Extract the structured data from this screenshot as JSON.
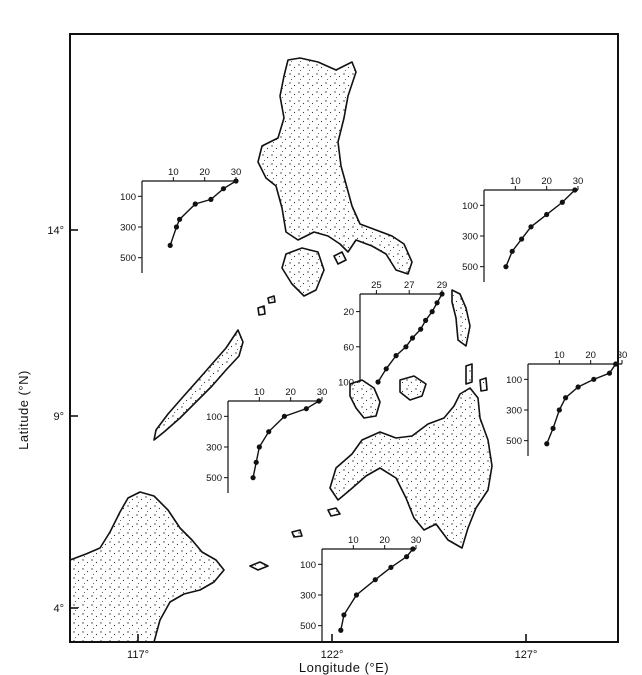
{
  "map": {
    "x_axis": {
      "title": "Longitude (°E)",
      "ticks": [
        "117°",
        "122°",
        "127°"
      ]
    },
    "y_axis": {
      "title": "Latitude (°N)",
      "ticks": [
        "14°",
        "9°",
        "4°"
      ]
    }
  },
  "profiles": [
    {
      "id": "nw",
      "temp_ticks": [
        "10",
        "20",
        "30"
      ],
      "depth_ticks": [
        "100",
        "300",
        "500"
      ],
      "temp_range": [
        0,
        30
      ],
      "depth_range": [
        0,
        600
      ],
      "points": [
        [
          30,
          0
        ],
        [
          26,
          50
        ],
        [
          22,
          120
        ],
        [
          17,
          150
        ],
        [
          12,
          250
        ],
        [
          11,
          300
        ],
        [
          9,
          420
        ]
      ]
    },
    {
      "id": "ne",
      "temp_ticks": [
        "10",
        "20",
        "30"
      ],
      "depth_ticks": [
        "100",
        "300",
        "500"
      ],
      "temp_range": [
        0,
        30
      ],
      "depth_range": [
        0,
        600
      ],
      "points": [
        [
          29,
          0
        ],
        [
          25,
          80
        ],
        [
          20,
          160
        ],
        [
          15,
          240
        ],
        [
          12,
          320
        ],
        [
          9,
          400
        ],
        [
          7,
          500
        ]
      ]
    },
    {
      "id": "central",
      "temp_ticks": [
        "25",
        "27",
        "29"
      ],
      "depth_ticks": [
        "20",
        "60",
        "100"
      ],
      "temp_range": [
        24,
        29
      ],
      "depth_range": [
        0,
        100
      ],
      "points": [
        [
          29,
          0
        ],
        [
          28.7,
          10
        ],
        [
          28.4,
          20
        ],
        [
          28,
          30
        ],
        [
          27.7,
          40
        ],
        [
          27.2,
          50
        ],
        [
          26.8,
          60
        ],
        [
          26.2,
          70
        ],
        [
          25.6,
          85
        ],
        [
          25.1,
          100
        ]
      ]
    },
    {
      "id": "west",
      "temp_ticks": [
        "10",
        "20",
        "30"
      ],
      "depth_ticks": [
        "100",
        "300",
        "500"
      ],
      "temp_range": [
        0,
        30
      ],
      "depth_range": [
        0,
        600
      ],
      "points": [
        [
          29,
          0
        ],
        [
          25,
          50
        ],
        [
          18,
          100
        ],
        [
          13,
          200
        ],
        [
          10,
          300
        ],
        [
          9,
          400
        ],
        [
          8,
          500
        ]
      ]
    },
    {
      "id": "east",
      "temp_ticks": [
        "10",
        "20",
        "30"
      ],
      "depth_ticks": [
        "100",
        "300",
        "500"
      ],
      "temp_range": [
        0,
        30
      ],
      "depth_range": [
        0,
        600
      ],
      "points": [
        [
          28,
          0
        ],
        [
          26,
          60
        ],
        [
          21,
          100
        ],
        [
          16,
          150
        ],
        [
          12,
          220
        ],
        [
          10,
          300
        ],
        [
          8,
          420
        ],
        [
          6,
          520
        ]
      ]
    },
    {
      "id": "south",
      "temp_ticks": [
        "10",
        "20",
        "30"
      ],
      "depth_ticks": [
        "100",
        "300",
        "500"
      ],
      "temp_range": [
        0,
        30
      ],
      "depth_range": [
        0,
        600
      ],
      "points": [
        [
          29,
          0
        ],
        [
          27,
          50
        ],
        [
          22,
          120
        ],
        [
          17,
          200
        ],
        [
          11,
          300
        ],
        [
          7,
          430
        ],
        [
          6,
          530
        ]
      ]
    }
  ]
}
